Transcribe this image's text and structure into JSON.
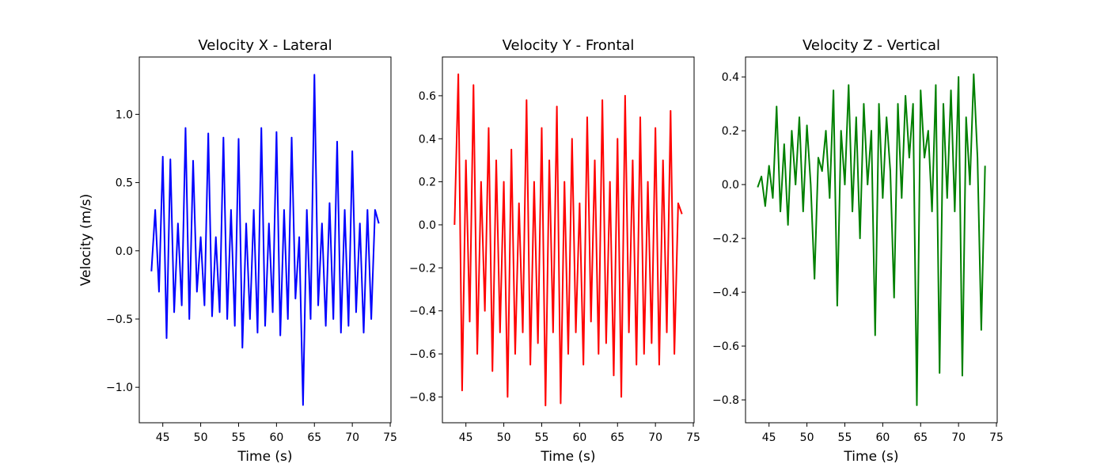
{
  "chart_data": [
    {
      "type": "line",
      "title": "Velocity X - Lateral",
      "x_label": "Time (s)",
      "y_label": "Velocity (m/s)",
      "color": "#0000ff",
      "x": [
        43.5,
        44,
        44.5,
        45,
        45.5,
        46,
        46.5,
        47,
        47.5,
        48,
        48.5,
        49,
        49.5,
        50,
        50.5,
        51,
        51.5,
        52,
        52.5,
        53,
        53.5,
        54,
        54.5,
        55,
        55.5,
        56,
        56.5,
        57,
        57.5,
        58,
        58.5,
        59,
        59.5,
        60,
        60.5,
        61,
        61.5,
        62,
        62.5,
        63,
        63.5,
        64,
        64.5,
        65,
        65.5,
        66,
        66.5,
        67,
        67.5,
        68,
        68.5,
        69,
        69.5,
        70,
        70.5,
        71,
        71.5,
        72,
        72.5,
        73,
        73.5
      ],
      "values": [
        -0.15,
        0.3,
        -0.3,
        0.69,
        -0.64,
        0.67,
        -0.45,
        0.2,
        -0.4,
        0.9,
        -0.5,
        0.66,
        -0.3,
        0.1,
        -0.4,
        0.86,
        -0.48,
        0.1,
        -0.45,
        0.83,
        -0.5,
        0.3,
        -0.55,
        0.82,
        -0.71,
        0.2,
        -0.5,
        0.3,
        -0.6,
        0.9,
        -0.55,
        0.2,
        -0.45,
        0.87,
        -0.62,
        0.3,
        -0.5,
        0.83,
        -0.35,
        0.1,
        -1.13,
        0.3,
        -0.5,
        1.29,
        -0.4,
        0.2,
        -0.55,
        0.35,
        -0.5,
        0.8,
        -0.6,
        0.3,
        -0.55,
        0.73,
        -0.45,
        0.2,
        -0.6,
        0.3,
        -0.5,
        0.3,
        0.2
      ],
      "xlim": [
        41.9,
        75.1
      ],
      "xticks": [
        45,
        50,
        55,
        60,
        65,
        70,
        75
      ],
      "ylim": [
        -1.26,
        1.42
      ],
      "yticks": [
        {
          "value": -1.0,
          "label": "−1.0"
        },
        {
          "value": -0.5,
          "label": "−0.5"
        },
        {
          "value": 0.0,
          "label": "0.0"
        },
        {
          "value": 0.5,
          "label": "0.5"
        },
        {
          "value": 1.0,
          "label": "1.0"
        }
      ]
    },
    {
      "type": "line",
      "title": "Velocity Y - Frontal",
      "x_label": "Time (s)",
      "color": "#ff0000",
      "x": [
        43.5,
        44,
        44.5,
        45,
        45.5,
        46,
        46.5,
        47,
        47.5,
        48,
        48.5,
        49,
        49.5,
        50,
        50.5,
        51,
        51.5,
        52,
        52.5,
        53,
        53.5,
        54,
        54.5,
        55,
        55.5,
        56,
        56.5,
        57,
        57.5,
        58,
        58.5,
        59,
        59.5,
        60,
        60.5,
        61,
        61.5,
        62,
        62.5,
        63,
        63.5,
        64,
        64.5,
        65,
        65.5,
        66,
        66.5,
        67,
        67.5,
        68,
        68.5,
        69,
        69.5,
        70,
        70.5,
        71,
        71.5,
        72,
        72.5,
        73,
        73.5
      ],
      "values": [
        0,
        0.7,
        -0.77,
        0.3,
        -0.45,
        0.65,
        -0.6,
        0.2,
        -0.4,
        0.45,
        -0.68,
        0.3,
        -0.5,
        0.2,
        -0.8,
        0.35,
        -0.6,
        0.1,
        -0.5,
        0.58,
        -0.65,
        0.2,
        -0.55,
        0.45,
        -0.84,
        0.3,
        -0.5,
        0.55,
        -0.83,
        0.2,
        -0.6,
        0.4,
        -0.5,
        0.1,
        -0.65,
        0.5,
        -0.45,
        0.3,
        -0.6,
        0.58,
        -0.55,
        0.2,
        -0.7,
        0.4,
        -0.8,
        0.6,
        -0.5,
        0.3,
        -0.65,
        0.5,
        -0.6,
        0.2,
        -0.55,
        0.45,
        -0.65,
        0.3,
        -0.5,
        0.53,
        -0.6,
        0.1,
        0.05
      ],
      "xlim": [
        41.9,
        75.1
      ],
      "xticks": [
        45,
        50,
        55,
        60,
        65,
        70,
        75
      ],
      "ylim": [
        -0.92,
        0.78
      ],
      "yticks": [
        {
          "value": -0.8,
          "label": "−0.8"
        },
        {
          "value": -0.6,
          "label": "−0.6"
        },
        {
          "value": -0.4,
          "label": "−0.4"
        },
        {
          "value": -0.2,
          "label": "−0.2"
        },
        {
          "value": 0.0,
          "label": "0.0"
        },
        {
          "value": 0.2,
          "label": "0.2"
        },
        {
          "value": 0.4,
          "label": "0.4"
        },
        {
          "value": 0.6,
          "label": "0.6"
        }
      ]
    },
    {
      "type": "line",
      "title": "Velocity Z - Vertical",
      "x_label": "Time (s)",
      "color": "#008000",
      "x": [
        43.5,
        44,
        44.5,
        45,
        45.5,
        46,
        46.5,
        47,
        47.5,
        48,
        48.5,
        49,
        49.5,
        50,
        50.5,
        51,
        51.5,
        52,
        52.5,
        53,
        53.5,
        54,
        54.5,
        55,
        55.5,
        56,
        56.5,
        57,
        57.5,
        58,
        58.5,
        59,
        59.5,
        60,
        60.5,
        61,
        61.5,
        62,
        62.5,
        63,
        63.5,
        64,
        64.5,
        65,
        65.5,
        66,
        66.5,
        67,
        67.5,
        68,
        68.5,
        69,
        69.5,
        70,
        70.5,
        71,
        71.5,
        72,
        72.5,
        73,
        73.5
      ],
      "values": [
        -0.01,
        0.03,
        -0.08,
        0.07,
        -0.05,
        0.29,
        -0.1,
        0.15,
        -0.15,
        0.2,
        0.0,
        0.25,
        -0.1,
        0.22,
        0.0,
        -0.35,
        0.1,
        0.05,
        0.2,
        -0.05,
        0.35,
        -0.45,
        0.2,
        0.0,
        0.37,
        -0.1,
        0.25,
        -0.2,
        0.3,
        0.0,
        0.2,
        -0.56,
        0.3,
        -0.05,
        0.25,
        0.05,
        -0.42,
        0.3,
        -0.05,
        0.33,
        0.1,
        0.3,
        -0.82,
        0.35,
        0.1,
        0.2,
        -0.1,
        0.37,
        -0.7,
        0.3,
        -0.05,
        0.35,
        -0.1,
        0.4,
        -0.71,
        0.25,
        0.0,
        0.41,
        0.1,
        -0.54,
        0.07
      ],
      "xlim": [
        41.9,
        75.1
      ],
      "xticks": [
        45,
        50,
        55,
        60,
        65,
        70,
        75
      ],
      "ylim": [
        -0.885,
        0.474
      ],
      "yticks": [
        {
          "value": -0.8,
          "label": "−0.8"
        },
        {
          "value": -0.6,
          "label": "−0.6"
        },
        {
          "value": -0.4,
          "label": "−0.4"
        },
        {
          "value": -0.2,
          "label": "−0.2"
        },
        {
          "value": 0.0,
          "label": "0.0"
        },
        {
          "value": 0.2,
          "label": "0.2"
        },
        {
          "value": 0.4,
          "label": "0.4"
        }
      ]
    }
  ]
}
